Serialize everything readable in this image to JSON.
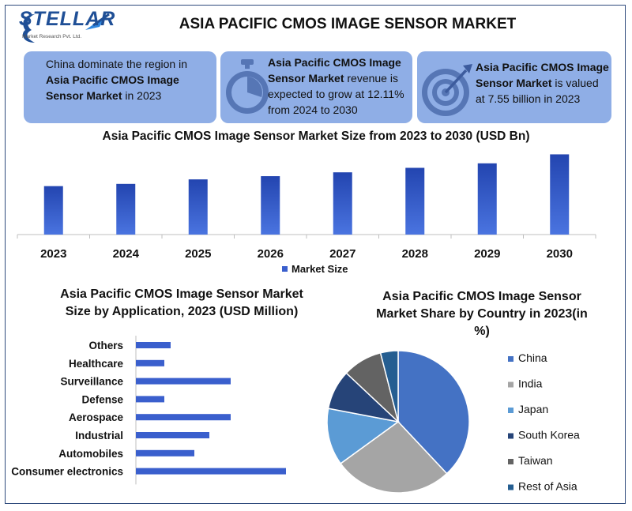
{
  "logo": {
    "name": "STELLAR",
    "subtitle": "Market Research Pvt. Ltd."
  },
  "main_title": "ASIA PACIFIC CMOS IMAGE SENSOR MARKET",
  "cards": [
    {
      "pre": "China dominate the region in ",
      "bold": "Asia Pacific CMOS Image Sensor Market",
      "post": " in 2023",
      "icon": ""
    },
    {
      "pre": "",
      "bold": "Asia Pacific CMOS Image Sensor Market",
      "post": " revenue is expected to grow at 12.11% from 2024 to 2030",
      "icon": "stopwatch-icon"
    },
    {
      "pre": "",
      "bold": "Asia Pacific CMOS Image Sensor Market",
      "post": " is valued at 7.55 billion in 2023",
      "icon": "target-icon"
    }
  ],
  "colors": {
    "card_bg": "#8faee6",
    "bar": "#3a5fcd",
    "bar_dark": "#2345b0",
    "frame": "#2f4b7c"
  },
  "chart_data": [
    {
      "type": "bar",
      "title": "Asia Pacific CMOS Image Sensor Market Size from 2023 to 2030 (USD Bn)",
      "categories": [
        "2023",
        "2024",
        "2025",
        "2026",
        "2027",
        "2028",
        "2029",
        "2030"
      ],
      "series": [
        {
          "name": "Market Size",
          "values": [
            7.55,
            7.9,
            8.6,
            9.1,
            9.7,
            10.4,
            11.1,
            12.5
          ]
        }
      ],
      "ylim": [
        0,
        12.8
      ],
      "legend": "bottom"
    },
    {
      "type": "bar",
      "orientation": "horizontal",
      "title": "Asia Pacific CMOS Image Sensor Market Size by Application, 2023 (USD Million)",
      "categories": [
        "Others",
        "Healthcare",
        "Surveillance",
        "Defense",
        "Aerospace",
        "Industrial",
        "Automobiles",
        "Consumer electronics"
      ],
      "values": [
        44,
        36,
        120,
        36,
        120,
        93,
        74,
        190
      ],
      "xlim": [
        0,
        200
      ]
    },
    {
      "type": "pie",
      "title": "Asia Pacific CMOS Image Sensor Market Share by Country in 2023(in %)",
      "labels": [
        "China",
        "India",
        "Japan",
        "South Korea",
        "Taiwan",
        "Rest of Asia"
      ],
      "values": [
        38,
        27,
        13,
        9,
        9,
        4
      ],
      "colors": [
        "#4472c4",
        "#a5a5a5",
        "#5b9bd5",
        "#264478",
        "#636363",
        "#255e91"
      ],
      "legend": "right"
    }
  ]
}
